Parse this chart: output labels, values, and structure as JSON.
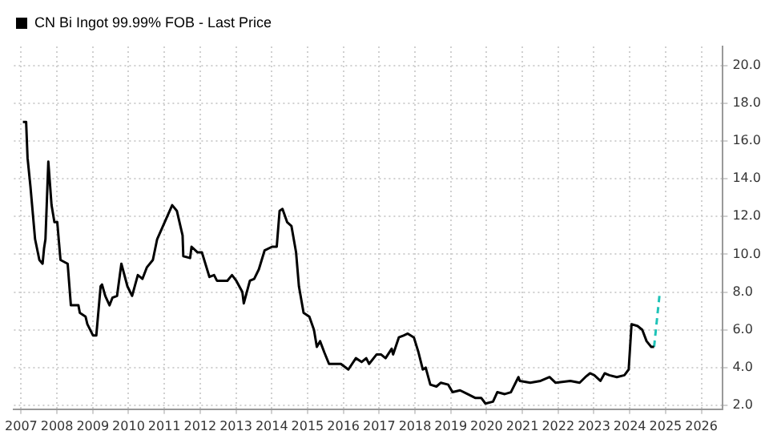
{
  "chart_data": {
    "type": "line",
    "legend": "top left",
    "grid": true,
    "line_style": "solid",
    "marker": "none",
    "series": [
      {
        "name": "CN Bi Ingot 99.99% FOB - Last Price",
        "color": "#000000",
        "x": [
          2007.55,
          2007.64,
          2007.68,
          2007.76,
          2007.89,
          2008.01,
          2008.1,
          2008.14,
          2008.18,
          2008.26,
          2008.35,
          2008.43,
          2008.51,
          2008.55,
          2008.6,
          2008.8,
          2008.89,
          2009.1,
          2009.14,
          2009.3,
          2009.35,
          2009.51,
          2009.6,
          2009.72,
          2009.76,
          2009.85,
          2009.97,
          2010.05,
          2010.18,
          2010.3,
          2010.47,
          2010.6,
          2010.76,
          2010.89,
          2011.01,
          2011.18,
          2011.3,
          2011.51,
          2011.72,
          2011.85,
          2012.01,
          2012.03,
          2012.22,
          2012.26,
          2012.43,
          2012.55,
          2012.76,
          2012.89,
          2012.97,
          2013.26,
          2013.39,
          2013.51,
          2013.68,
          2013.72,
          2013.89,
          2014.01,
          2014.14,
          2014.3,
          2014.51,
          2014.64,
          2014.72,
          2014.8,
          2014.93,
          2015.05,
          2015.18,
          2015.26,
          2015.39,
          2015.55,
          2015.68,
          2015.76,
          2015.85,
          2015.97,
          2016.1,
          2016.3,
          2016.43,
          2016.64,
          2016.85,
          2017.01,
          2017.14,
          2017.22,
          2017.43,
          2017.55,
          2017.68,
          2017.85,
          2017.89,
          2018.05,
          2018.18,
          2018.3,
          2018.47,
          2018.6,
          2018.72,
          2018.8,
          2018.93,
          2019.1,
          2019.22,
          2019.43,
          2019.55,
          2019.76,
          2019.97,
          2020.18,
          2020.35,
          2020.47,
          2020.68,
          2020.8,
          2021.01,
          2021.18,
          2021.39,
          2021.43,
          2021.72,
          2022.01,
          2022.26,
          2022.43,
          2022.84,
          2023.1,
          2023.26,
          2023.39,
          2023.51,
          2023.68,
          2023.8,
          2023.93,
          2024.14,
          2024.35,
          2024.47,
          2024.55,
          2024.72,
          2024.85,
          2024.97,
          2025.1,
          2025.18
        ],
        "values": [
          17.0,
          17.0,
          15.1,
          13.6,
          10.8,
          9.7,
          9.5,
          10.3,
          10.8,
          14.9,
          12.6,
          11.7,
          11.7,
          10.8,
          9.7,
          9.5,
          7.3,
          7.3,
          6.9,
          6.7,
          6.3,
          5.7,
          5.7,
          8.3,
          8.4,
          7.8,
          7.3,
          7.7,
          7.8,
          9.5,
          8.3,
          7.8,
          8.9,
          8.7,
          9.3,
          9.7,
          10.8,
          11.7,
          12.6,
          12.3,
          11.0,
          9.9,
          9.8,
          10.4,
          10.1,
          10.1,
          8.8,
          8.9,
          8.6,
          8.6,
          8.9,
          8.6,
          8.0,
          7.4,
          8.6,
          8.7,
          9.2,
          10.2,
          10.4,
          10.4,
          12.3,
          12.4,
          11.7,
          11.5,
          10.1,
          8.3,
          6.9,
          6.7,
          6.0,
          5.1,
          5.4,
          4.8,
          4.2,
          4.2,
          4.2,
          3.9,
          4.5,
          4.3,
          4.5,
          4.2,
          4.7,
          4.7,
          4.5,
          5.0,
          4.7,
          5.6,
          5.7,
          5.8,
          5.6,
          4.8,
          3.9,
          4.0,
          3.1,
          3.0,
          3.2,
          3.1,
          2.7,
          2.8,
          2.6,
          2.4,
          2.4,
          2.1,
          2.2,
          2.7,
          2.6,
          2.7,
          3.5,
          3.3,
          3.2,
          3.3,
          3.5,
          3.2,
          3.3,
          3.2,
          3.5,
          3.7,
          3.6,
          3.3,
          3.7,
          3.6,
          3.5,
          3.6,
          3.9,
          6.3,
          6.2,
          6.0,
          5.4,
          5.1,
          5.1
        ]
      },
      {
        "color": "#1fc3b8",
        "line_style": "dashed",
        "x": [
          2025.18,
          2025.34
        ],
        "values": [
          5.1,
          8.0
        ]
      }
    ],
    "ylim": [
      1.8,
      21
    ],
    "yticks": [
      {
        "value": 2,
        "label": "2.0"
      },
      {
        "value": 4,
        "label": "4.0"
      },
      {
        "value": 6,
        "label": "6.0"
      },
      {
        "value": 8,
        "label": "8.0"
      },
      {
        "value": 10,
        "label": "10.0"
      },
      {
        "value": 12,
        "label": "12.0"
      },
      {
        "value": 14,
        "label": "14.0"
      },
      {
        "value": 16,
        "label": "16.0"
      },
      {
        "value": 18,
        "label": "18.0"
      },
      {
        "value": 20,
        "label": "20.0"
      }
    ],
    "xlim": [
      2007.3,
      2027.1
    ],
    "xticks": [
      {
        "value": 2007.5,
        "label": "2007"
      },
      {
        "value": 2008.5,
        "label": "2008"
      },
      {
        "value": 2009.5,
        "label": "2009"
      },
      {
        "value": 2010.5,
        "label": "2010"
      },
      {
        "value": 2011.5,
        "label": "2011"
      },
      {
        "value": 2012.5,
        "label": "2012"
      },
      {
        "value": 2013.5,
        "label": "2013"
      },
      {
        "value": 2014.5,
        "label": "2014"
      },
      {
        "value": 2015.5,
        "label": "2015"
      },
      {
        "value": 2016.5,
        "label": "2016"
      },
      {
        "value": 2017.5,
        "label": "2017"
      },
      {
        "value": 2018.5,
        "label": "2018"
      },
      {
        "value": 2019.5,
        "label": "2019"
      },
      {
        "value": 2020.5,
        "label": "2020"
      },
      {
        "value": 2021.5,
        "label": "2021"
      },
      {
        "value": 2022.5,
        "label": "2022"
      },
      {
        "value": 2023.5,
        "label": "2023"
      },
      {
        "value": 2024.5,
        "label": "2024"
      },
      {
        "value": 2025.5,
        "label": "2025"
      },
      {
        "value": 2026.5,
        "label": "2026"
      }
    ]
  }
}
